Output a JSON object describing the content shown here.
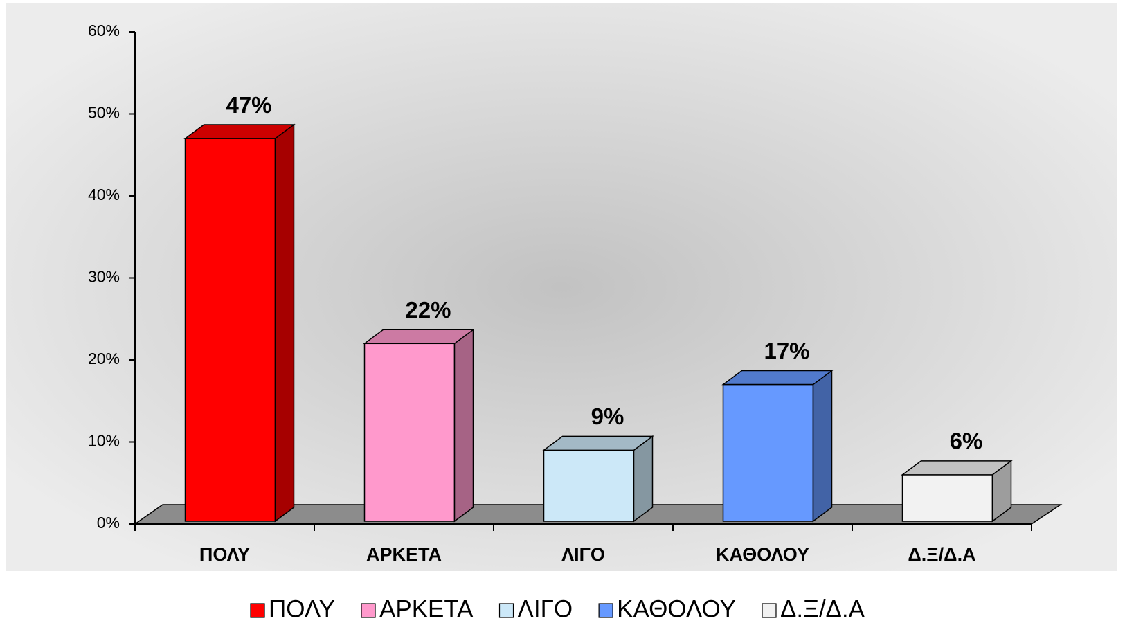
{
  "chart_data": {
    "type": "bar3d",
    "categories": [
      "ΠΟΛΥ",
      "ΑΡΚΕΤΑ",
      "ΛΙΓΟ",
      "ΚΑΘΟΛΟΥ",
      "Δ.Ξ/Δ.Α"
    ],
    "values": [
      47,
      22,
      9,
      17,
      6
    ],
    "value_labels": [
      "47%",
      "22%",
      "9%",
      "17%",
      "6%"
    ],
    "colors": [
      "#ff0000",
      "#ff99cc",
      "#cce8f8",
      "#6699ff",
      "#f2f2f2"
    ],
    "ylim": [
      0,
      60
    ],
    "yticks": [
      {
        "value": 0,
        "label": "0%"
      },
      {
        "value": 10,
        "label": "10%"
      },
      {
        "value": 20,
        "label": "20%"
      },
      {
        "value": 30,
        "label": "30%"
      },
      {
        "value": 40,
        "label": "40%"
      },
      {
        "value": 50,
        "label": "50%"
      },
      {
        "value": 60,
        "label": "60%"
      }
    ],
    "legend": "bottom"
  }
}
